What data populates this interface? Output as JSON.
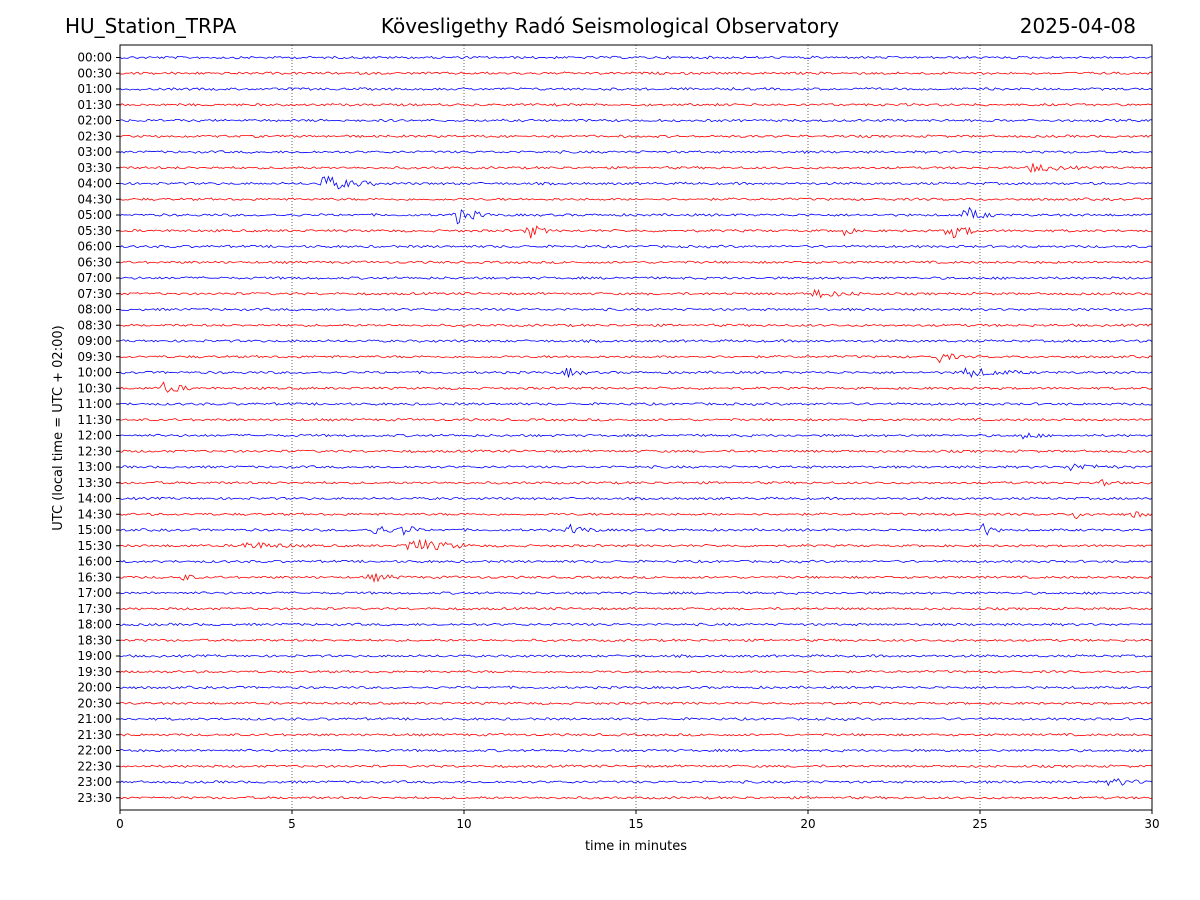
{
  "header": {
    "station": "HU_Station_TRPA",
    "observatory": "Kövesligethy Radó Seismological Observatory",
    "date": "2025-04-08"
  },
  "chart_data": {
    "type": "line",
    "title": "Kövesligethy Radó Seismological Observatory",
    "xlabel": "time in minutes",
    "ylabel": "UTC (local time = UTC + 02:00)",
    "xlim": [
      0,
      30
    ],
    "xticks": [
      "0",
      "5",
      "10",
      "15",
      "20",
      "25",
      "30"
    ],
    "grid": "vertical dotted lines at 5, 10, 15, 20, 25",
    "colors": {
      "even_rows": "#0000ff",
      "odd_rows": "#ff0000"
    },
    "rows": [
      "00:00",
      "00:30",
      "01:00",
      "01:30",
      "02:00",
      "02:30",
      "03:00",
      "03:30",
      "04:00",
      "04:30",
      "05:00",
      "05:30",
      "06:00",
      "06:30",
      "07:00",
      "07:30",
      "08:00",
      "08:30",
      "09:00",
      "09:30",
      "10:00",
      "10:30",
      "11:00",
      "11:30",
      "12:00",
      "12:30",
      "13:00",
      "13:30",
      "14:00",
      "14:30",
      "15:00",
      "15:30",
      "16:00",
      "16:30",
      "17:00",
      "17:30",
      "18:00",
      "18:30",
      "19:00",
      "19:30",
      "20:00",
      "20:30",
      "21:00",
      "21:30",
      "22:00",
      "22:30",
      "23:00",
      "23:30"
    ],
    "events": [
      {
        "row": "03:30",
        "minute": 26.5,
        "duration": 1.5,
        "strength": 0.5
      },
      {
        "row": "04:00",
        "minute": 5.9,
        "duration": 1.6,
        "strength": 1.0
      },
      {
        "row": "05:00",
        "minute": 9.8,
        "duration": 1.0,
        "strength": 1.0
      },
      {
        "row": "05:00",
        "minute": 24.6,
        "duration": 0.8,
        "strength": 1.0
      },
      {
        "row": "05:30",
        "minute": 11.9,
        "duration": 0.6,
        "strength": 1.0
      },
      {
        "row": "05:30",
        "minute": 20.9,
        "duration": 0.5,
        "strength": 1.0
      },
      {
        "row": "05:30",
        "minute": 24.1,
        "duration": 1.0,
        "strength": 1.0
      },
      {
        "row": "07:30",
        "minute": 20.2,
        "duration": 1.4,
        "strength": 0.5
      },
      {
        "row": "09:30",
        "minute": 23.8,
        "duration": 0.7,
        "strength": 0.7
      },
      {
        "row": "10:00",
        "minute": 13.0,
        "duration": 0.6,
        "strength": 0.6
      },
      {
        "row": "10:00",
        "minute": 24.5,
        "duration": 2.0,
        "strength": 0.6
      },
      {
        "row": "10:30",
        "minute": 1.3,
        "duration": 0.8,
        "strength": 0.8
      },
      {
        "row": "12:00",
        "minute": 26.3,
        "duration": 0.6,
        "strength": 0.5
      },
      {
        "row": "13:00",
        "minute": 27.6,
        "duration": 1.5,
        "strength": 0.5
      },
      {
        "row": "13:30",
        "minute": 28.6,
        "duration": 0.3,
        "strength": 0.6
      },
      {
        "row": "14:30",
        "minute": 27.8,
        "duration": 0.5,
        "strength": 0.5
      },
      {
        "row": "14:30",
        "minute": 29.5,
        "duration": 0.6,
        "strength": 0.4
      },
      {
        "row": "15:00",
        "minute": 7.4,
        "duration": 0.6,
        "strength": 0.9
      },
      {
        "row": "15:00",
        "minute": 8.2,
        "duration": 0.6,
        "strength": 0.8
      },
      {
        "row": "15:00",
        "minute": 13.1,
        "duration": 0.9,
        "strength": 0.6
      },
      {
        "row": "15:00",
        "minute": 25.1,
        "duration": 0.5,
        "strength": 0.8
      },
      {
        "row": "15:30",
        "minute": 3.6,
        "duration": 1.8,
        "strength": 0.5
      },
      {
        "row": "15:30",
        "minute": 8.4,
        "duration": 1.8,
        "strength": 1.0
      },
      {
        "row": "16:30",
        "minute": 1.8,
        "duration": 0.5,
        "strength": 0.5
      },
      {
        "row": "16:30",
        "minute": 7.3,
        "duration": 1.0,
        "strength": 0.5
      },
      {
        "row": "23:00",
        "minute": 28.8,
        "duration": 1.2,
        "strength": 0.5
      }
    ]
  }
}
